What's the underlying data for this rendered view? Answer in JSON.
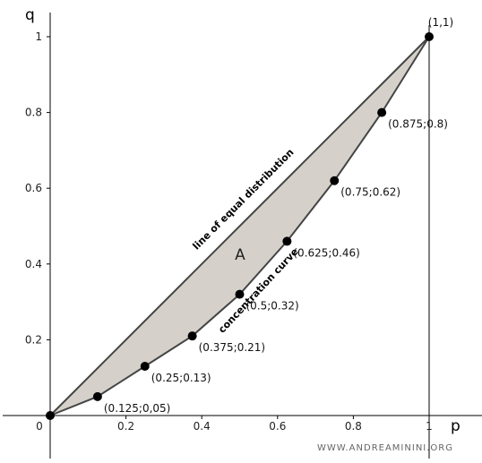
{
  "chart_data": {
    "type": "line",
    "xlabel": "p",
    "ylabel": "q",
    "xlim": [
      0,
      1
    ],
    "ylim": [
      0,
      1
    ],
    "x_ticks": [
      "0.2",
      "0.4",
      "0.6",
      "0.8",
      "1"
    ],
    "y_ticks": [
      "0.2",
      "0.4",
      "0.6",
      "0.8",
      "1"
    ],
    "origin_label": "0",
    "grid": false,
    "series": [
      {
        "name": "line of equal distribution",
        "points": [
          [
            0,
            0
          ],
          [
            1,
            1
          ]
        ]
      },
      {
        "name": "concentration curve",
        "points": [
          [
            0,
            0
          ],
          [
            0.125,
            0.05
          ],
          [
            0.25,
            0.13
          ],
          [
            0.375,
            0.21
          ],
          [
            0.5,
            0.32
          ],
          [
            0.625,
            0.46
          ],
          [
            0.75,
            0.62
          ],
          [
            0.875,
            0.8
          ],
          [
            1,
            1
          ]
        ]
      }
    ],
    "point_labels": [
      {
        "x": 0.125,
        "y": 0.05,
        "text": "(0.125;0,05)"
      },
      {
        "x": 0.25,
        "y": 0.13,
        "text": "(0.25;0.13)"
      },
      {
        "x": 0.375,
        "y": 0.21,
        "text": "(0.375;0.21)"
      },
      {
        "x": 0.5,
        "y": 0.32,
        "text": "(0.5;0.32)"
      },
      {
        "x": 0.625,
        "y": 0.46,
        "text": "(0.625;0.46)"
      },
      {
        "x": 0.75,
        "y": 0.62,
        "text": "(0.75;0.62)"
      },
      {
        "x": 0.875,
        "y": 0.8,
        "text": "(0.875;0.8)"
      },
      {
        "x": 1,
        "y": 1,
        "text": "(1,1)"
      }
    ],
    "area_label": "A",
    "fill_color": "#d5d1ca",
    "line_color": "#444444",
    "point_color": "#000000"
  },
  "watermark": "WWW.ANDREAMININI.ORG"
}
